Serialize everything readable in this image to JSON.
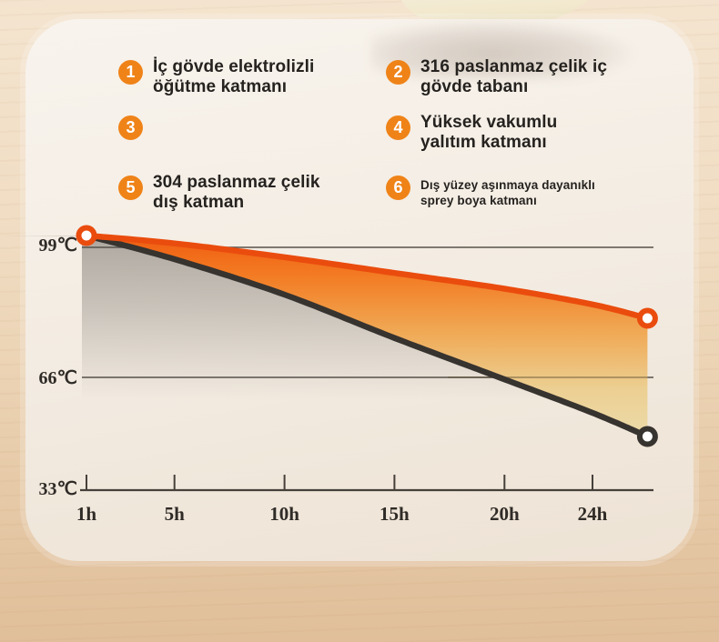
{
  "features": [
    {
      "num": "1",
      "line1": "İç gövde elektrolizli",
      "line2": "öğütme katmanı"
    },
    {
      "num": "2",
      "line1": "316 paslanmaz çelik iç",
      "line2": "gövde tabanı"
    },
    {
      "num": "3",
      "line1": "",
      "line2": ""
    },
    {
      "num": "4",
      "line1": "Yüksek vakumlu",
      "line2": "yalıtım katmanı"
    },
    {
      "num": "5",
      "line1": "304 paslanmaz çelik",
      "line2": "dış katman"
    },
    {
      "num": "6",
      "line1": "Dış yüzey aşınmaya dayanıklı",
      "line2": "sprey boya katmanı"
    }
  ],
  "chart_data": {
    "type": "line",
    "title": "",
    "xlabel": "",
    "ylabel": "",
    "grid": "horizontal-only",
    "legend": "none",
    "x_tick_labels": [
      "1h",
      "5h",
      "10h",
      "15h",
      "20h",
      "24h"
    ],
    "x_tick_hours": [
      1,
      5,
      10,
      15,
      20,
      24
    ],
    "y_tick_labels": [
      "99℃",
      "66℃",
      "33℃"
    ],
    "y_tick_values_c": [
      99,
      66,
      33
    ],
    "ylim": [
      33,
      105
    ],
    "series": [
      {
        "name": "orange-line-vacuum-retention",
        "color": "#ea4c0e",
        "hours": [
          1,
          5,
          10,
          15,
          20,
          24,
          26.5
        ],
        "temps_c": [
          102,
          100,
          96.5,
          92.5,
          88.5,
          84.5,
          81
        ]
      },
      {
        "name": "black-line-reference",
        "color": "#37332f",
        "hours": [
          1,
          5,
          10,
          15,
          20,
          24,
          26.5
        ],
        "temps_c": [
          102,
          96,
          87,
          76,
          65.5,
          57,
          51
        ]
      }
    ]
  },
  "colors": {
    "badge_orange": "#ef8318",
    "line_orange": "#ea4c0e",
    "line_black": "#37332f",
    "band_top": "#ef5a0f",
    "band_bottom": "#ecdcab",
    "axis": "#45403a",
    "gridline": "#56514b",
    "text_dark": "#25221f",
    "chart_text": "#2f2b27",
    "panel_bg": "#f5efe7",
    "wood_bg": "#eccfac"
  }
}
